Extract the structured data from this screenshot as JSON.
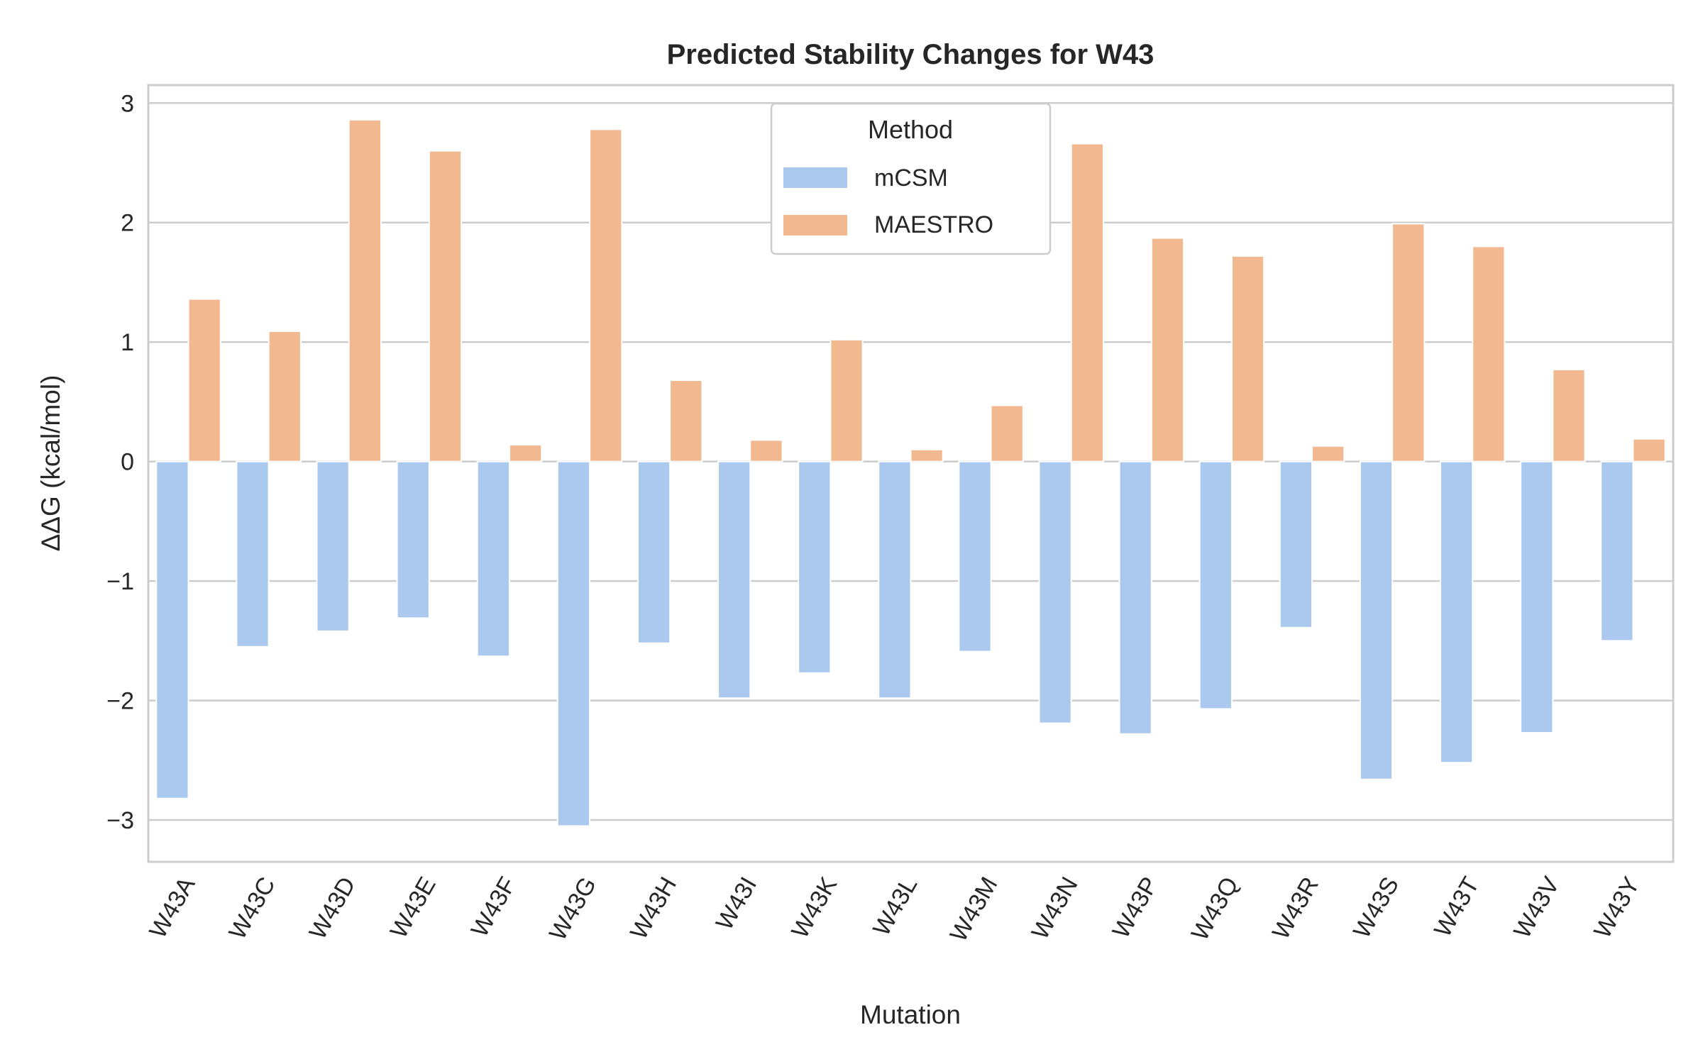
{
  "chart_data": {
    "type": "bar",
    "title": "Predicted Stability Changes for W43",
    "xlabel": "Mutation",
    "ylabel": "ΔΔG (kcal/mol)",
    "ylim": [
      -3.35,
      3.15
    ],
    "yticks": [
      -3,
      -2,
      -1,
      0,
      1,
      2,
      3
    ],
    "grid": true,
    "legend": {
      "title": "Method",
      "placement": "top-center"
    },
    "categories": [
      "W43A",
      "W43C",
      "W43D",
      "W43E",
      "W43F",
      "W43G",
      "W43H",
      "W43I",
      "W43K",
      "W43L",
      "W43M",
      "W43N",
      "W43P",
      "W43Q",
      "W43R",
      "W43S",
      "W43T",
      "W43V",
      "W43Y"
    ],
    "series": [
      {
        "name": "mCSM",
        "color": "#abc9ee",
        "values": [
          -2.82,
          -1.55,
          -1.42,
          -1.31,
          -1.63,
          -3.05,
          -1.52,
          -1.98,
          -1.77,
          -1.98,
          -1.59,
          -2.19,
          -2.28,
          -2.07,
          -1.39,
          -2.66,
          -2.52,
          -2.27,
          -1.5
        ]
      },
      {
        "name": "MAESTRO",
        "color": "#f2b890",
        "values": [
          1.36,
          1.09,
          2.86,
          2.6,
          0.14,
          2.78,
          0.68,
          0.18,
          1.02,
          0.1,
          0.47,
          2.66,
          1.87,
          1.72,
          0.13,
          1.99,
          1.8,
          0.77,
          0.19
        ]
      }
    ]
  }
}
